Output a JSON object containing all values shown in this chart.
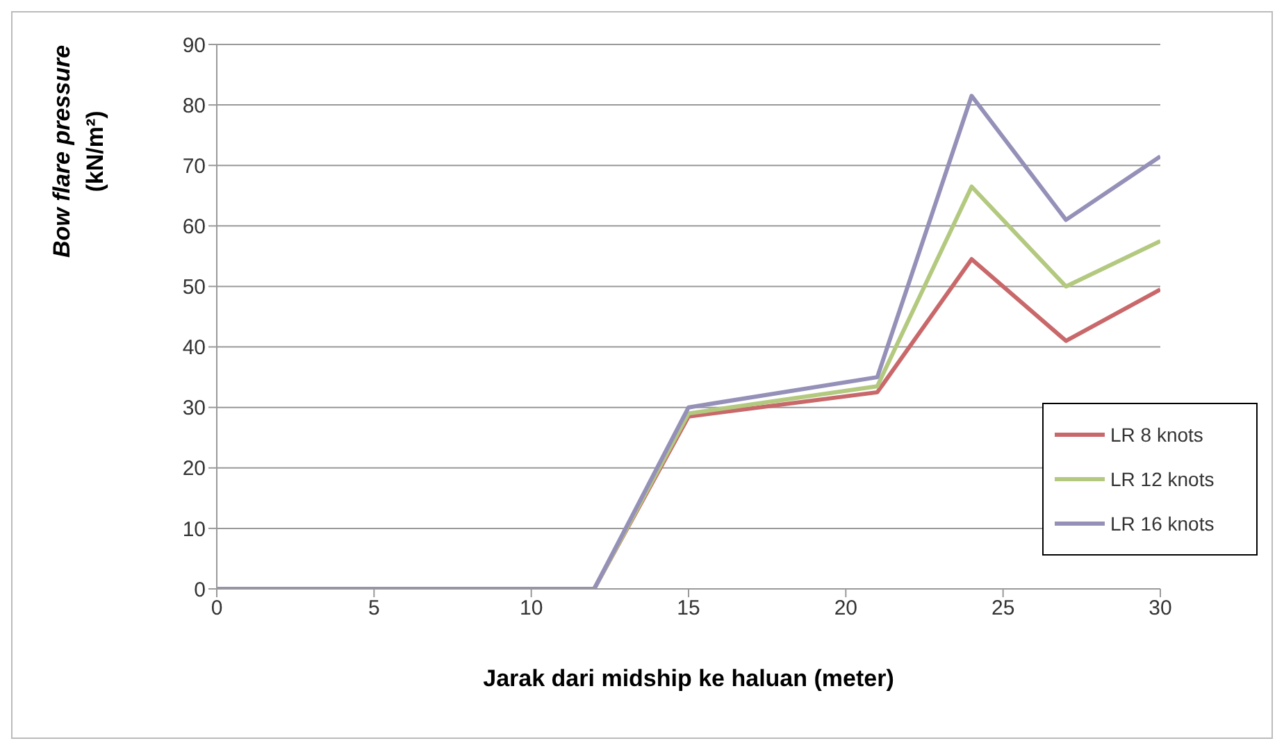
{
  "chart_data": {
    "type": "line",
    "xlabel": "Jarak dari midship ke haluan (meter)",
    "ylabel": "Bow flare pressure (kN/m²)",
    "x": [
      0,
      12,
      15,
      21,
      24,
      27,
      30
    ],
    "series": [
      {
        "name": "LR 8 knots",
        "color": "#c9686a",
        "values": [
          0,
          0,
          28.5,
          32.5,
          54.5,
          41,
          49.5
        ]
      },
      {
        "name": "LR 12 knots",
        "color": "#b3c97f",
        "values": [
          0,
          0,
          29,
          33.5,
          66.5,
          50,
          57.5
        ]
      },
      {
        "name": "LR 16 knots",
        "color": "#9490b8",
        "values": [
          0,
          0,
          30,
          35,
          81.5,
          61,
          71.5
        ]
      }
    ],
    "xlim": [
      0,
      30
    ],
    "xticks": [
      0,
      5,
      10,
      15,
      20,
      25,
      30
    ],
    "ylim": [
      0,
      90
    ],
    "yticks": [
      0,
      10,
      20,
      30,
      40,
      50,
      60,
      70,
      80,
      90
    ],
    "grid": "y",
    "legend": "right",
    "marker": "none",
    "line_style": "solid"
  }
}
